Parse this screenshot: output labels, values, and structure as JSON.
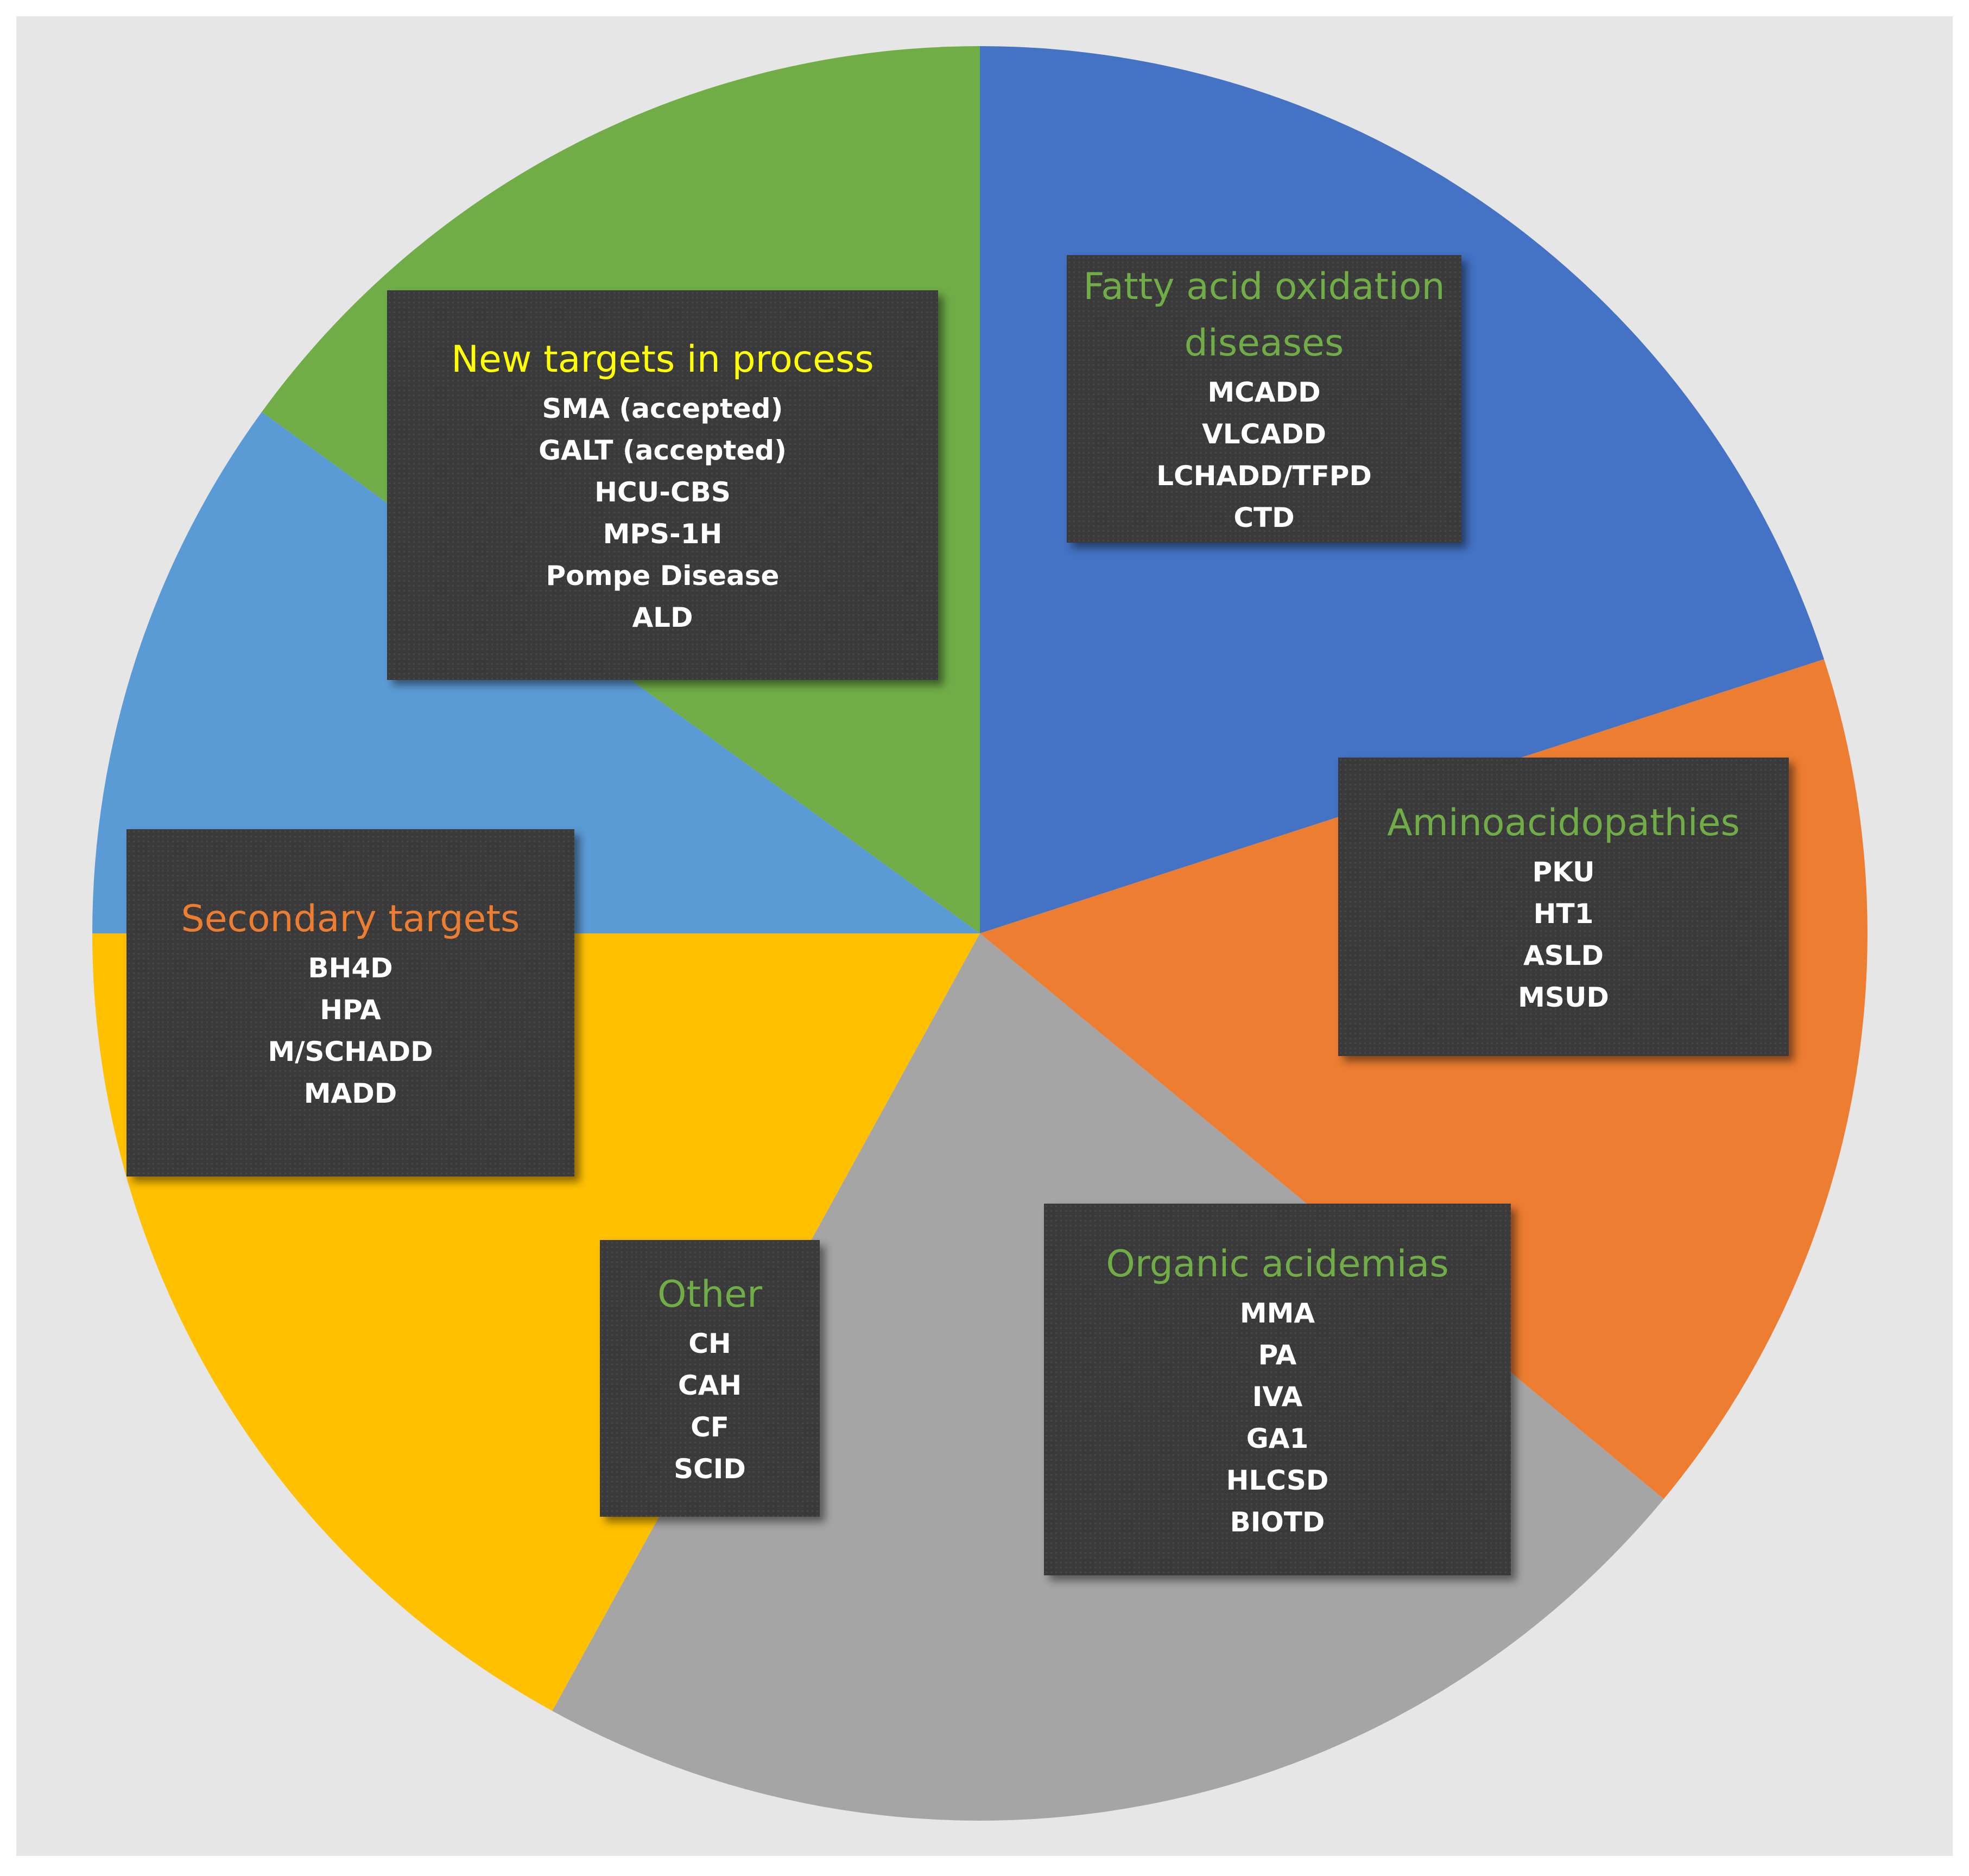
{
  "chart_data": {
    "type": "pie",
    "values": [
      20,
      16,
      22,
      17,
      10,
      15
    ],
    "slices": [
      {
        "label": "Fatty acid oxidation diseases",
        "value": 20,
        "color": "#4472c4",
        "title_color": "#70ad47",
        "items": [
          "MCADD",
          "VLCADD",
          "LCHADD/TFPD",
          "CTD"
        ]
      },
      {
        "label": "Aminoacidopathies",
        "value": 16,
        "color": "#ed7d31",
        "title_color": "#70ad47",
        "items": [
          "PKU",
          "HT1",
          "ASLD",
          "MSUD"
        ]
      },
      {
        "label": "Organic acidemias",
        "value": 22,
        "color": "#a5a5a5",
        "title_color": "#70ad47",
        "items": [
          "MMA",
          "PA",
          "IVA",
          "GA1",
          "HLCSD",
          "BIOTD"
        ]
      },
      {
        "label": "Other",
        "value": 17,
        "color": "#ffc000",
        "title_color": "#70ad47",
        "items": [
          "CH",
          "CAH",
          "CF",
          "SCID"
        ]
      },
      {
        "label": "Secondary targets",
        "value": 10,
        "color": "#5b9bd5",
        "title_color": "#ed7d31",
        "items": [
          "BH4D",
          "HPA",
          "M/SCHADD",
          "MADD"
        ]
      },
      {
        "label": "New targets in process",
        "value": 15,
        "color": "#70ad47",
        "title_color": "#ffff00",
        "items": [
          "SMA (accepted)",
          "GALT (accepted)",
          "HCU-CBS",
          "MPS-1H",
          "Pompe Disease",
          "ALD"
        ]
      }
    ]
  }
}
